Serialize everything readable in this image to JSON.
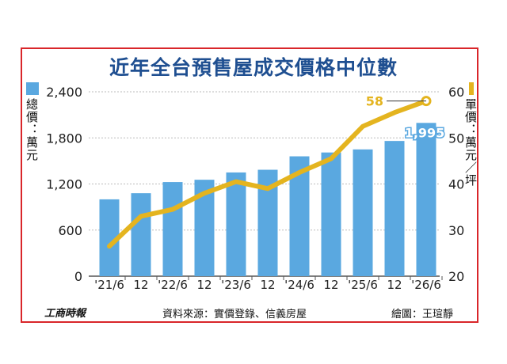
{
  "title": "近年全台預售屋成交價格中位數",
  "left_axis_label": "總價：萬元",
  "right_axis_label": "單價：萬元／坪",
  "footer": {
    "brand": "工商時報",
    "source": "資料來源：實價登錄、信義房屋",
    "credit": "繪圖：王瑄靜"
  },
  "colors": {
    "bar": "#5aa8e0",
    "line": "#e4b41f",
    "frame": "#d9262a",
    "title": "#1f4f91"
  },
  "chart_data": {
    "type": "bar+line",
    "categories": [
      "'21/6",
      "12",
      "'22/6",
      "12",
      "'23/6",
      "12",
      "'24/6",
      "12",
      "'25/6",
      "12",
      "'26/6"
    ],
    "series": [
      {
        "name": "總價",
        "type": "bar",
        "axis": "left",
        "values": [
          1000,
          1080,
          1225,
          1255,
          1350,
          1385,
          1560,
          1610,
          1650,
          1760,
          1995
        ]
      },
      {
        "name": "單價",
        "type": "line",
        "axis": "right",
        "values": [
          26.5,
          33,
          34.5,
          38,
          40.5,
          39,
          42.5,
          45.5,
          52.5,
          55.5,
          58
        ]
      }
    ],
    "left_axis": {
      "min": 0,
      "max": 2400,
      "ticks": [
        "0",
        "600",
        "1,200",
        "1,800",
        "2,400"
      ]
    },
    "right_axis": {
      "min": 20,
      "max": 60,
      "ticks": [
        "20",
        "30",
        "40",
        "50",
        "60"
      ]
    },
    "data_labels": {
      "bar_last": "1,995",
      "line_last": "58"
    },
    "grid": true
  }
}
